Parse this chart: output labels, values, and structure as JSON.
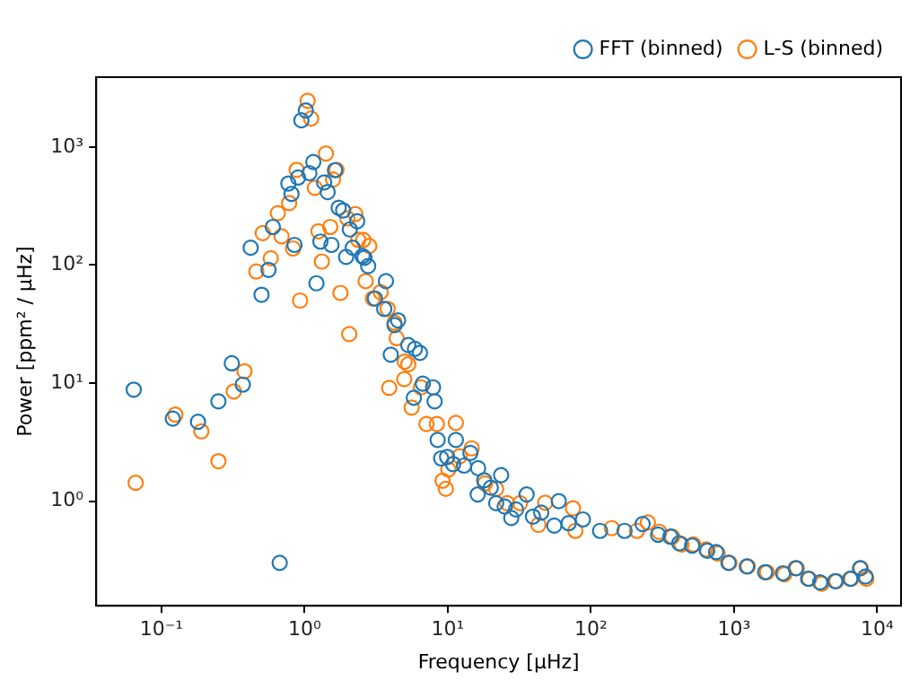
{
  "chart_data": {
    "type": "scatter",
    "xlabel": "Frequency [μHz]",
    "ylabel": "Power [ppm² / μHz]",
    "log": "xy",
    "grid": false,
    "legend": "top right",
    "marker": "circle",
    "xlim": [
      0.035,
      14700
    ],
    "ylim": [
      0.13,
      3900
    ],
    "xticks": [
      {
        "value": 0.1,
        "label": "10⁻¹"
      },
      {
        "value": 1,
        "label": "10⁰"
      },
      {
        "value": 10,
        "label": "10¹"
      },
      {
        "value": 100,
        "label": "10²"
      },
      {
        "value": 1000,
        "label": "10³"
      },
      {
        "value": 10000,
        "label": "10⁴"
      }
    ],
    "yticks": [
      {
        "value": 1,
        "label": "10⁰"
      },
      {
        "value": 10,
        "label": "10¹"
      },
      {
        "value": 100,
        "label": "10²"
      },
      {
        "value": 1000,
        "label": "10³"
      }
    ],
    "series": [
      {
        "name": "FFT (binned)",
        "color": "#1f77b4",
        "x": [
          0.064,
          0.12,
          0.18,
          0.25,
          0.31,
          0.37,
          0.42,
          0.5,
          0.56,
          0.6,
          0.67,
          0.77,
          0.81,
          0.85,
          0.9,
          0.95,
          1.02,
          1.08,
          1.15,
          1.21,
          1.29,
          1.37,
          1.45,
          1.54,
          1.63,
          1.73,
          1.86,
          1.95,
          2.07,
          2.17,
          2.33,
          2.54,
          2.62,
          2.78,
          3.1,
          3.7,
          3.6,
          4.0,
          4.25,
          4.5,
          5.3,
          5.8,
          5.9,
          6.4,
          6.7,
          7.9,
          8.1,
          8.5,
          9.0,
          9.9,
          10.9,
          11.4,
          13,
          14.4,
          16.2,
          16.3,
          18,
          20,
          21.8,
          23.6,
          25,
          27.8,
          30,
          35.6,
          39.4,
          45,
          55.5,
          59.7,
          70,
          88,
          116,
          172,
          230,
          295,
          360,
          415,
          510,
          650,
          750,
          915,
          1230,
          1650,
          2200,
          2700,
          3300,
          4000,
          5100,
          6500,
          7600,
          8300
        ],
        "values": [
          8.8,
          5.0,
          4.7,
          7.0,
          14.7,
          9.7,
          140,
          56,
          91,
          210,
          0.3,
          490,
          400,
          148,
          550,
          1680,
          2040,
          600,
          745,
          70,
          158,
          500,
          415,
          148,
          635,
          305,
          290,
          117,
          200,
          140,
          235,
          119,
          115,
          98,
          52,
          73,
          42.5,
          17.4,
          31,
          34,
          21,
          7.5,
          19.5,
          18,
          9.9,
          9.2,
          7.0,
          3.3,
          2.3,
          2.37,
          2.06,
          3.3,
          2.0,
          2.56,
          1.14,
          1.9,
          1.5,
          1.3,
          0.96,
          1.66,
          0.9,
          0.72,
          0.85,
          1.14,
          0.74,
          0.8,
          0.62,
          1.0,
          0.65,
          0.7,
          0.56,
          0.56,
          0.64,
          0.52,
          0.5,
          0.44,
          0.42,
          0.38,
          0.37,
          0.3,
          0.28,
          0.25,
          0.245,
          0.27,
          0.22,
          0.205,
          0.21,
          0.22,
          0.27,
          0.23
        ]
      },
      {
        "name": "L-S (binned)",
        "color": "#ff7f0e",
        "x": [
          0.066,
          0.125,
          0.19,
          0.25,
          0.32,
          0.38,
          0.46,
          0.51,
          0.58,
          0.65,
          0.69,
          0.78,
          0.83,
          0.88,
          0.93,
          1.05,
          1.11,
          1.18,
          1.25,
          1.32,
          1.41,
          1.51,
          1.58,
          1.67,
          1.78,
          1.99,
          2.05,
          2.26,
          2.37,
          2.57,
          2.67,
          2.83,
          3.0,
          3.4,
          3.8,
          3.9,
          4.25,
          4.4,
          4.97,
          5.0,
          5.3,
          5.6,
          6.5,
          7.1,
          8.4,
          9.2,
          9.7,
          10.1,
          11.4,
          12.1,
          14.7,
          18.2,
          21.8,
          26,
          32,
          43,
          48,
          75,
          78,
          140,
          210,
          250,
          300,
          370,
          430,
          520,
          640,
          770,
          930,
          1250,
          1700,
          2250,
          2750,
          3350,
          4100,
          5200,
          6600,
          7700,
          8400
        ],
        "values": [
          1.43,
          5.4,
          3.9,
          2.18,
          8.5,
          12.6,
          88,
          186,
          114,
          275,
          175,
          335,
          138,
          640,
          50,
          2460,
          1740,
          450,
          193,
          107,
          880,
          210,
          530,
          640,
          58,
          248,
          26,
          270,
          163,
          163,
          73,
          145,
          52,
          59,
          42.5,
          9.1,
          32.5,
          24,
          10.8,
          15.2,
          14.4,
          6.2,
          9.2,
          4.5,
          4.5,
          1.49,
          1.27,
          1.85,
          4.6,
          2.4,
          2.8,
          1.41,
          1.27,
          0.96,
          0.96,
          0.63,
          0.97,
          0.87,
          0.56,
          0.59,
          0.56,
          0.66,
          0.55,
          0.5,
          0.43,
          0.43,
          0.39,
          0.36,
          0.3,
          0.28,
          0.25,
          0.24,
          0.27,
          0.22,
          0.2,
          0.21,
          0.22,
          0.27,
          0.22
        ]
      }
    ]
  }
}
